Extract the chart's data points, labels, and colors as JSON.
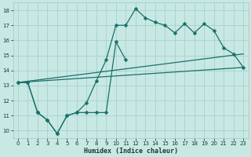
{
  "xlabel": "Humidex (Indice chaleur)",
  "bg_color": "#c8e8e4",
  "line_color": "#1a706a",
  "grid_color": "#9ececa",
  "xlim": [
    -0.5,
    23.5
  ],
  "ylim": [
    9.5,
    18.5
  ],
  "xticks": [
    0,
    1,
    2,
    3,
    4,
    5,
    6,
    7,
    8,
    9,
    10,
    11,
    12,
    13,
    14,
    15,
    16,
    17,
    18,
    19,
    20,
    21,
    22,
    23
  ],
  "yticks": [
    10,
    11,
    12,
    13,
    14,
    15,
    16,
    17,
    18
  ],
  "line1_x": [
    0,
    1,
    2,
    3,
    4,
    5,
    6,
    7,
    8,
    9,
    10,
    11,
    12,
    13,
    14,
    15,
    16,
    17,
    18,
    19,
    20,
    21,
    22,
    23
  ],
  "line1_y": [
    13.2,
    13.2,
    11.2,
    10.7,
    9.8,
    11.0,
    11.2,
    11.85,
    13.3,
    14.7,
    17.0,
    17.0,
    18.1,
    17.5,
    17.2,
    17.0,
    16.5,
    17.1,
    16.5,
    17.1,
    16.65,
    15.5,
    15.1,
    14.2
  ],
  "line2_x": [
    0,
    1,
    2,
    3,
    4,
    5,
    6,
    7,
    8,
    9,
    10,
    11
  ],
  "line2_y": [
    13.2,
    13.2,
    11.2,
    10.7,
    9.8,
    11.0,
    11.2,
    11.2,
    11.2,
    11.2,
    15.9,
    14.7
  ],
  "line3_x": [
    0,
    23
  ],
  "line3_y": [
    13.2,
    15.1
  ],
  "line4_x": [
    0,
    23
  ],
  "line4_y": [
    13.2,
    14.2
  ],
  "markersize": 2.5,
  "linewidth": 0.9
}
